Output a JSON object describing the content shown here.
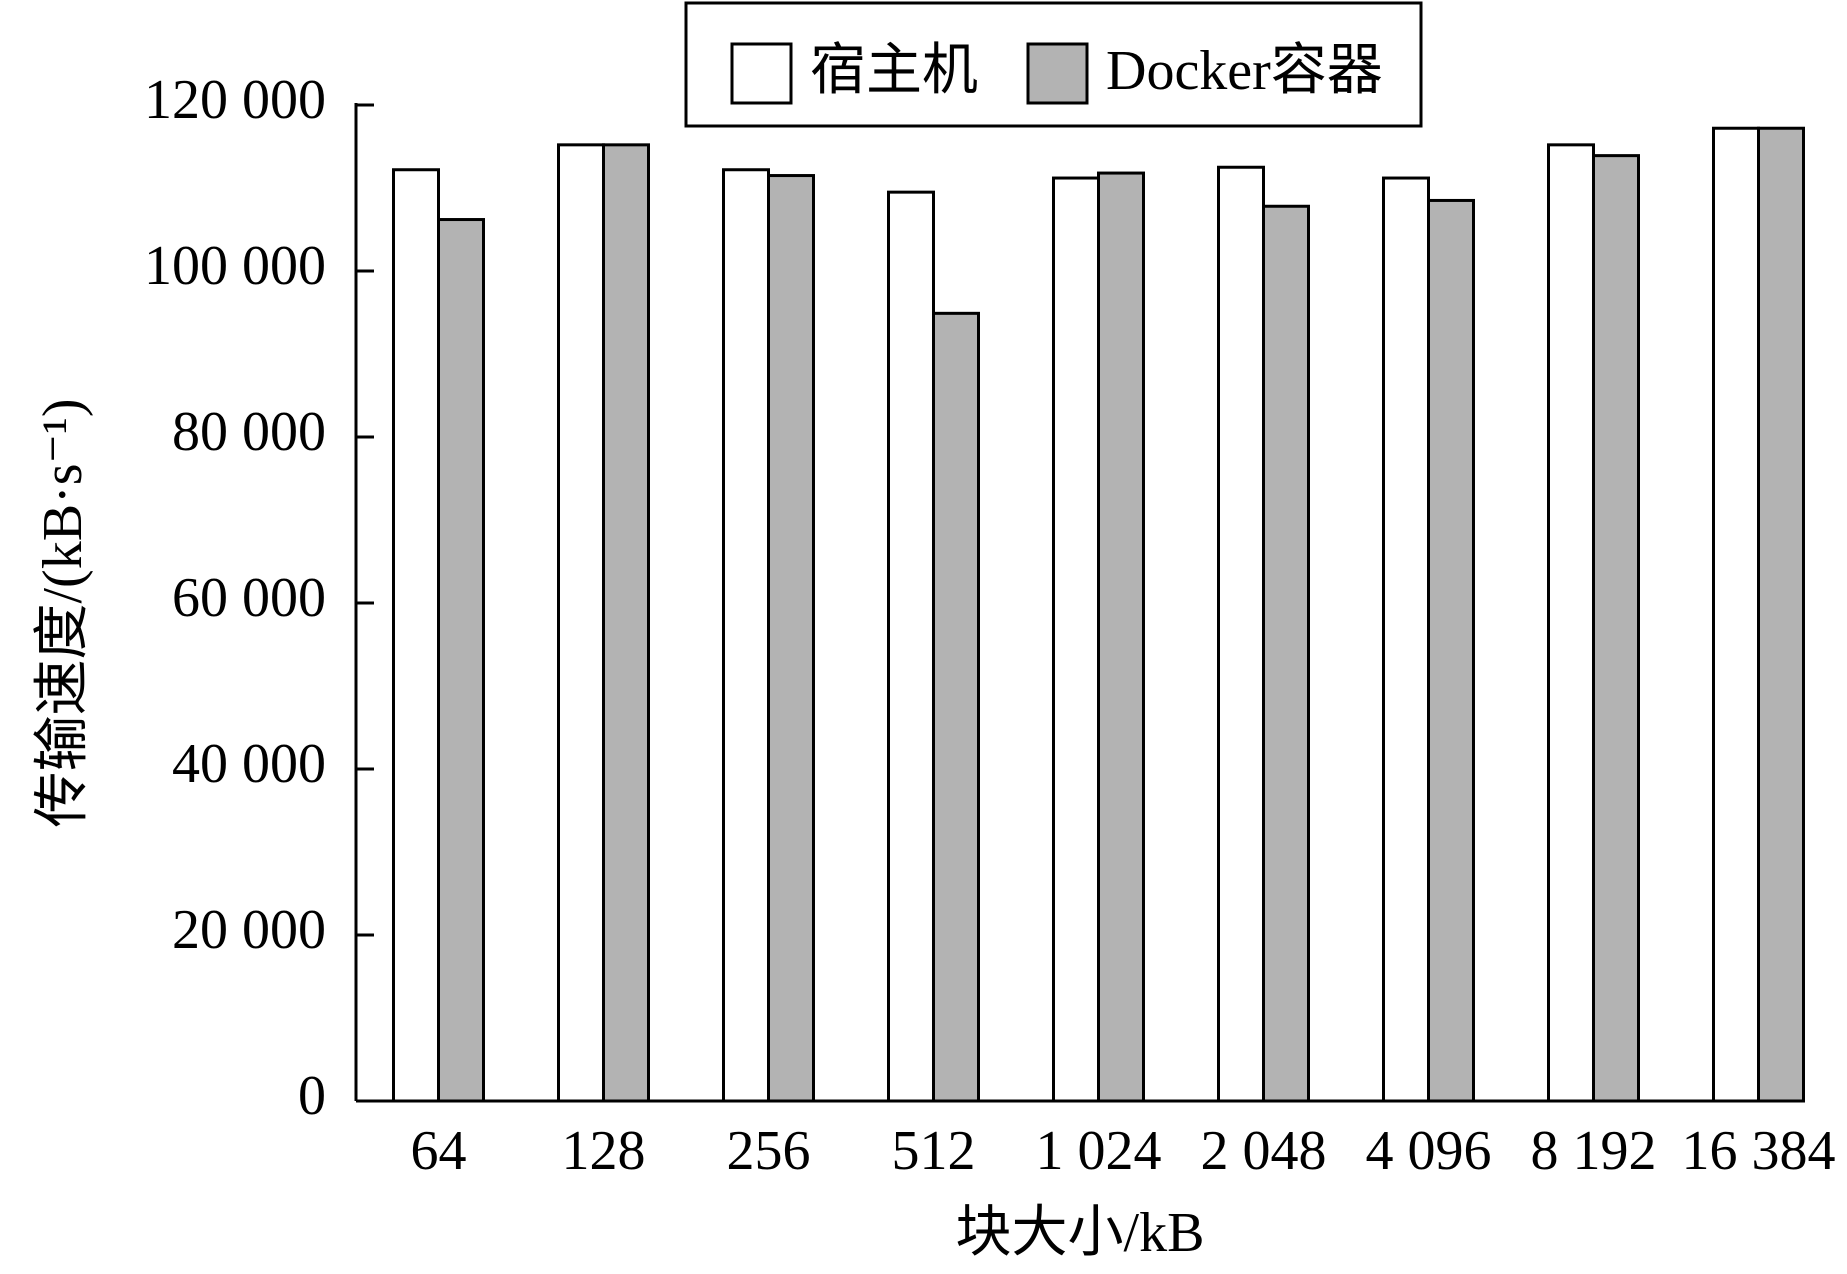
{
  "chart_data": {
    "type": "bar",
    "x_label": "块大小/kB",
    "y_label": "传输速度/(kB·s⁻¹)",
    "categories": [
      "64",
      "128",
      "256",
      "512",
      "1 024",
      "2 048",
      "4 096",
      "8 192",
      "16 384"
    ],
    "series": [
      {
        "name": "宿主机",
        "color": "#ffffff",
        "values": [
          112200,
          115200,
          112200,
          109500,
          111200,
          112500,
          111200,
          115200,
          117200
        ]
      },
      {
        "name": "Docker容器",
        "color": "#b3b3b3",
        "values": [
          106200,
          115200,
          111500,
          94900,
          111800,
          107800,
          108500,
          113900,
          117200
        ]
      }
    ],
    "ylim": [
      0,
      120000
    ],
    "yticks": [
      0,
      {
        "value": 20000,
        "label": "20 000"
      },
      {
        "value": 40000,
        "label": "40 000"
      },
      {
        "value": 60000,
        "label": "60 000"
      },
      {
        "value": 80000,
        "label": "80 000"
      },
      {
        "value": 100000,
        "label": "100 000"
      },
      {
        "value": 120000,
        "label": "120 000"
      }
    ],
    "grid": false,
    "legend": "top"
  }
}
